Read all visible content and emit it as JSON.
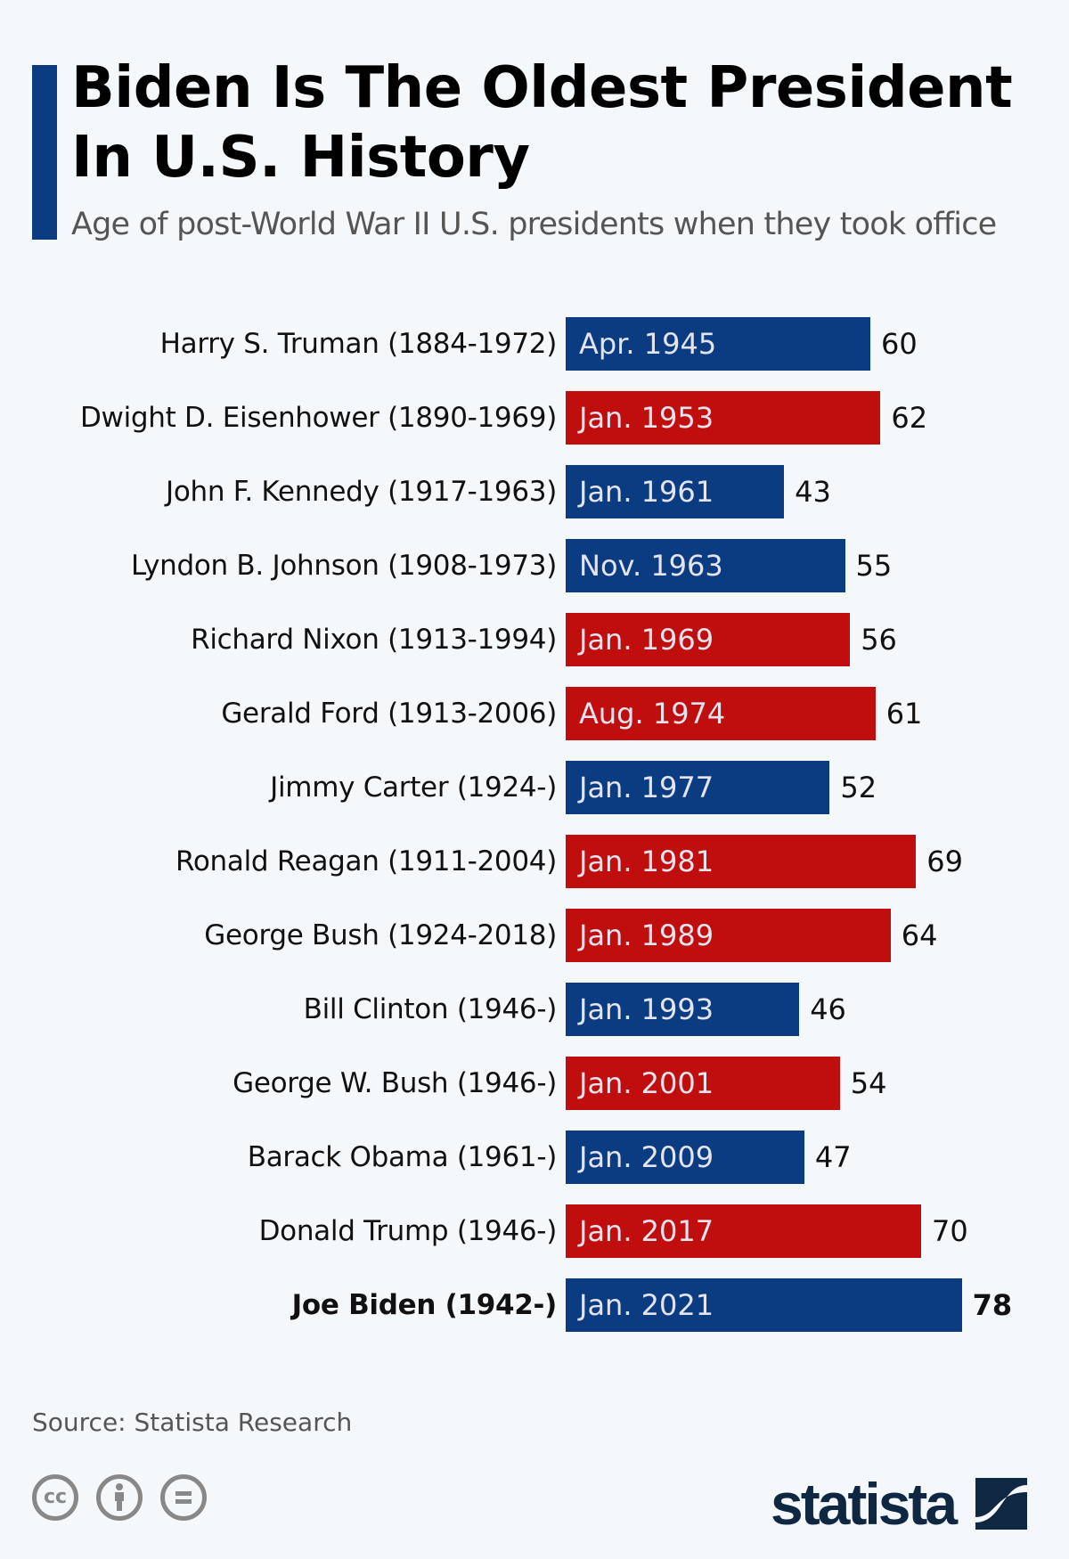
{
  "title": "Biden Is The Oldest President In U.S. History",
  "subtitle": "Age of post-World War II U.S. presidents when they took office",
  "colors": {
    "democrat": "#0b3c82",
    "republican": "#c00d0d",
    "background": "#f5f8fb"
  },
  "chart_data": {
    "type": "bar",
    "orientation": "horizontal",
    "categories": [
      "Harry S. Truman (1884-1972)",
      "Dwight D. Eisenhower (1890-1969)",
      "John F. Kennedy (1917-1963)",
      "Lyndon B. Johnson (1908-1973)",
      "Richard Nixon (1913-1994)",
      "Gerald Ford (1913-2006)",
      "Jimmy Carter (1924-)",
      "Ronald Reagan (1911-2004)",
      "George Bush (1924-2018)",
      "Bill Clinton (1946-)",
      "George W. Bush (1946-)",
      "Barack Obama (1961-)",
      "Donald Trump (1946-)",
      "Joe Biden (1942-)"
    ],
    "bar_labels": [
      "Apr. 1945",
      "Jan. 1953",
      "Jan. 1961",
      "Nov. 1963",
      "Jan. 1969",
      "Aug. 1974",
      "Jan. 1977",
      "Jan. 1981",
      "Jan. 1989",
      "Jan. 1993",
      "Jan. 2001",
      "Jan. 2009",
      "Jan. 2017",
      "Jan. 2021"
    ],
    "values": [
      60,
      62,
      43,
      55,
      56,
      61,
      52,
      69,
      64,
      46,
      54,
      47,
      70,
      78
    ],
    "bar_colors": [
      "democrat",
      "republican",
      "democrat",
      "democrat",
      "republican",
      "republican",
      "democrat",
      "republican",
      "republican",
      "democrat",
      "republican",
      "democrat",
      "republican",
      "democrat"
    ],
    "highlighted": "Joe Biden (1942-)",
    "xlim": [
      0,
      80
    ],
    "grid": false
  },
  "footer": {
    "source": "Source: Statista Research",
    "license_icons": [
      "cc-icon",
      "attribution-icon",
      "no-derivatives-icon"
    ],
    "brand": "statista"
  }
}
